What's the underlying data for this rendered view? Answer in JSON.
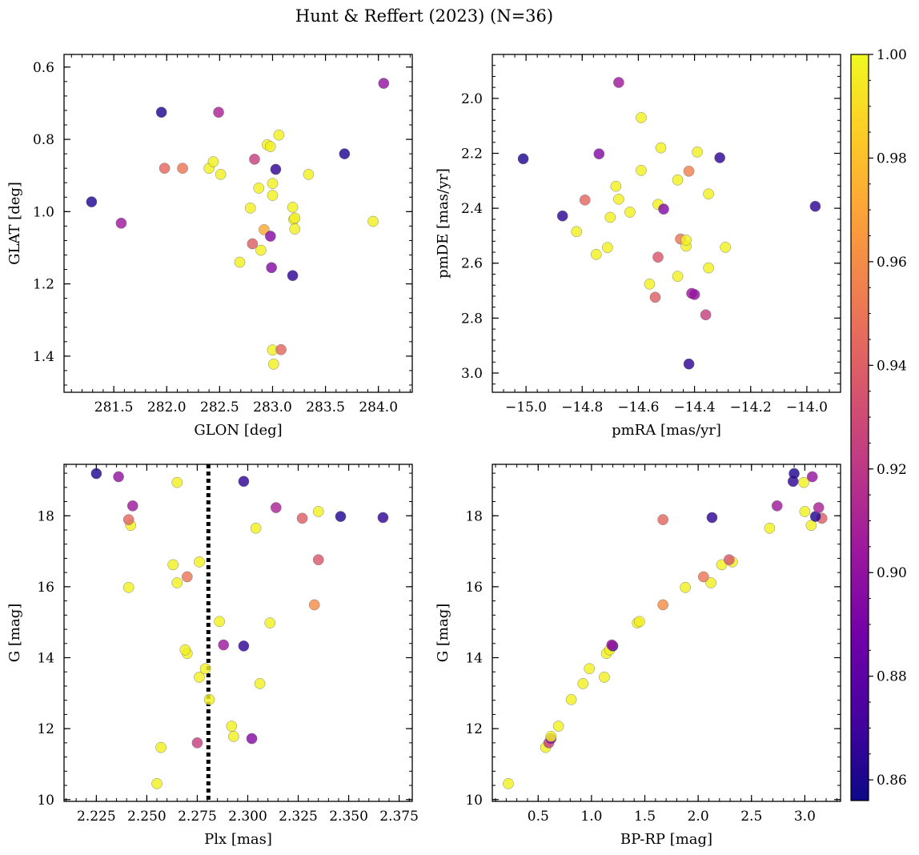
{
  "figure": {
    "title": "Hunt & Reffert (2023) (N=36)"
  },
  "colormap": {
    "name": "plasma",
    "range": [
      0.856,
      1.0
    ],
    "ticks": [
      0.86,
      0.88,
      0.9,
      0.92,
      0.94,
      0.96,
      0.98,
      1.0
    ],
    "tick_labels": [
      "0.86",
      "0.88",
      "0.90",
      "0.92",
      "0.94",
      "0.96",
      "0.98",
      "1.00"
    ],
    "stops": [
      "#0d0887",
      "#46039f",
      "#7201a8",
      "#9c179e",
      "#bd3786",
      "#d8576b",
      "#ed7953",
      "#fb9f3a",
      "#fdca26",
      "#f0f921"
    ]
  },
  "chart_data": [
    {
      "type": "scatter",
      "title": "",
      "xlabel": "GLON [deg]",
      "ylabel": "GLAT [deg]",
      "xlim": [
        281.03,
        284.32
      ],
      "ylim": [
        0.565,
        1.5
      ],
      "xticks": [
        281.5,
        282.0,
        282.5,
        283.0,
        283.5,
        284.0
      ],
      "xtick_labels": [
        "281.5",
        "282.0",
        "282.5",
        "283.0",
        "283.5",
        "284.0"
      ],
      "yticks": [
        0.6,
        0.8,
        1.0,
        1.2,
        1.4
      ],
      "ytick_labels": [
        "0.6",
        "0.8",
        "1.0",
        "1.2",
        "1.4"
      ],
      "points": [
        {
          "x": 281.29,
          "y": 0.973,
          "c": 0.862
        },
        {
          "x": 281.57,
          "y": 1.032,
          "c": 0.905
        },
        {
          "x": 281.95,
          "y": 0.725,
          "c": 0.862
        },
        {
          "x": 281.98,
          "y": 0.88,
          "c": 0.944
        },
        {
          "x": 282.15,
          "y": 0.88,
          "c": 0.95
        },
        {
          "x": 282.4,
          "y": 0.88,
          "c": 0.997
        },
        {
          "x": 282.44,
          "y": 0.862,
          "c": 0.997
        },
        {
          "x": 282.49,
          "y": 0.725,
          "c": 0.91
        },
        {
          "x": 282.51,
          "y": 0.897,
          "c": 0.997
        },
        {
          "x": 282.69,
          "y": 1.14,
          "c": 0.997
        },
        {
          "x": 282.79,
          "y": 0.99,
          "c": 0.997
        },
        {
          "x": 282.81,
          "y": 1.089,
          "c": 0.94
        },
        {
          "x": 282.83,
          "y": 0.855,
          "c": 0.925
        },
        {
          "x": 282.87,
          "y": 0.935,
          "c": 0.997
        },
        {
          "x": 282.89,
          "y": 1.107,
          "c": 0.997
        },
        {
          "x": 282.92,
          "y": 1.05,
          "c": 0.972
        },
        {
          "x": 282.95,
          "y": 0.815,
          "c": 0.997
        },
        {
          "x": 282.98,
          "y": 0.82,
          "c": 0.997
        },
        {
          "x": 282.98,
          "y": 1.068,
          "c": 0.895
        },
        {
          "x": 282.99,
          "y": 1.155,
          "c": 0.895
        },
        {
          "x": 283.0,
          "y": 0.922,
          "c": 0.997
        },
        {
          "x": 283.0,
          "y": 0.955,
          "c": 0.997
        },
        {
          "x": 283.0,
          "y": 1.383,
          "c": 0.997
        },
        {
          "x": 283.01,
          "y": 1.422,
          "c": 0.997
        },
        {
          "x": 283.03,
          "y": 0.883,
          "c": 0.866
        },
        {
          "x": 283.06,
          "y": 0.788,
          "c": 0.997
        },
        {
          "x": 283.08,
          "y": 1.382,
          "c": 0.944
        },
        {
          "x": 283.19,
          "y": 1.177,
          "c": 0.866
        },
        {
          "x": 283.19,
          "y": 0.988,
          "c": 0.997
        },
        {
          "x": 283.2,
          "y": 1.022,
          "c": 0.997
        },
        {
          "x": 283.21,
          "y": 1.018,
          "c": 0.997
        },
        {
          "x": 283.21,
          "y": 1.048,
          "c": 0.997
        },
        {
          "x": 283.34,
          "y": 0.897,
          "c": 0.997
        },
        {
          "x": 283.68,
          "y": 0.84,
          "c": 0.862
        },
        {
          "x": 283.95,
          "y": 1.027,
          "c": 0.997
        },
        {
          "x": 284.05,
          "y": 0.645,
          "c": 0.9
        }
      ]
    },
    {
      "type": "scatter",
      "title": "",
      "xlabel": "pmRA [mas/yr]",
      "ylabel": "pmDE [mas/yr]",
      "xlim": [
        -15.12,
        -13.88
      ],
      "ylim": [
        1.84,
        3.07
      ],
      "xticks": [
        -15.0,
        -14.8,
        -14.6,
        -14.4,
        -14.2,
        -14.0
      ],
      "xtick_labels": [
        "−15.0",
        "−14.8",
        "−14.6",
        "−14.4",
        "−14.2",
        "−14.0"
      ],
      "yticks": [
        2.0,
        2.2,
        2.4,
        2.6,
        2.8,
        3.0
      ],
      "ytick_labels": [
        "2.0",
        "2.2",
        "2.4",
        "2.6",
        "2.8",
        "3.0"
      ],
      "points": [
        {
          "x": -15.01,
          "y": 2.22,
          "c": 0.862
        },
        {
          "x": -14.87,
          "y": 2.428,
          "c": 0.866
        },
        {
          "x": -14.82,
          "y": 2.485,
          "c": 0.997
        },
        {
          "x": -14.79,
          "y": 2.37,
          "c": 0.944
        },
        {
          "x": -14.75,
          "y": 2.568,
          "c": 0.997
        },
        {
          "x": -14.74,
          "y": 2.202,
          "c": 0.895
        },
        {
          "x": -14.71,
          "y": 2.543,
          "c": 0.997
        },
        {
          "x": -14.7,
          "y": 2.433,
          "c": 0.997
        },
        {
          "x": -14.68,
          "y": 2.32,
          "c": 0.997
        },
        {
          "x": -14.67,
          "y": 2.367,
          "c": 0.997
        },
        {
          "x": -14.67,
          "y": 1.942,
          "c": 0.905
        },
        {
          "x": -14.63,
          "y": 2.414,
          "c": 0.997
        },
        {
          "x": -14.59,
          "y": 2.262,
          "c": 0.997
        },
        {
          "x": -14.59,
          "y": 2.07,
          "c": 0.997
        },
        {
          "x": -14.56,
          "y": 2.676,
          "c": 0.997
        },
        {
          "x": -14.54,
          "y": 2.724,
          "c": 0.94
        },
        {
          "x": -14.53,
          "y": 2.578,
          "c": 0.936
        },
        {
          "x": -14.53,
          "y": 2.386,
          "c": 0.997
        },
        {
          "x": -14.52,
          "y": 2.18,
          "c": 0.997
        },
        {
          "x": -14.51,
          "y": 2.403,
          "c": 0.895
        },
        {
          "x": -14.46,
          "y": 2.648,
          "c": 0.997
        },
        {
          "x": -14.46,
          "y": 2.297,
          "c": 0.997
        },
        {
          "x": -14.45,
          "y": 2.512,
          "c": 0.95
        },
        {
          "x": -14.43,
          "y": 2.538,
          "c": 0.997
        },
        {
          "x": -14.43,
          "y": 2.516,
          "c": 0.997
        },
        {
          "x": -14.42,
          "y": 2.967,
          "c": 0.866
        },
        {
          "x": -14.42,
          "y": 2.265,
          "c": 0.955
        },
        {
          "x": -14.41,
          "y": 2.71,
          "c": 0.905
        },
        {
          "x": -14.4,
          "y": 2.714,
          "c": 0.9
        },
        {
          "x": -14.39,
          "y": 2.195,
          "c": 0.997
        },
        {
          "x": -14.36,
          "y": 2.788,
          "c": 0.925
        },
        {
          "x": -14.35,
          "y": 2.617,
          "c": 0.997
        },
        {
          "x": -14.35,
          "y": 2.348,
          "c": 0.997
        },
        {
          "x": -14.31,
          "y": 2.216,
          "c": 0.866
        },
        {
          "x": -14.29,
          "y": 2.542,
          "c": 0.997
        },
        {
          "x": -13.97,
          "y": 2.393,
          "c": 0.866
        }
      ]
    },
    {
      "type": "scatter",
      "title": "",
      "xlabel": "Plx [mas]",
      "ylabel": "G [mag]",
      "xlim": [
        2.209,
        2.3815
      ],
      "ylim": [
        19.45,
        9.95
      ],
      "xticks": [
        2.225,
        2.25,
        2.275,
        2.3,
        2.325,
        2.35,
        2.375
      ],
      "xtick_labels": [
        "2.225",
        "2.250",
        "2.275",
        "2.300",
        "2.325",
        "2.350",
        "2.375"
      ],
      "yticks": [
        10,
        12,
        14,
        16,
        18
      ],
      "ytick_labels": [
        "10",
        "12",
        "14",
        "16",
        "18"
      ],
      "vline": {
        "x": 2.2805,
        "style": "dotted"
      },
      "points": [
        {
          "x": 2.255,
          "y": 10.45,
          "c": 0.997
        },
        {
          "x": 2.257,
          "y": 11.47,
          "c": 0.997
        },
        {
          "x": 2.275,
          "y": 11.6,
          "c": 0.925
        },
        {
          "x": 2.293,
          "y": 11.78,
          "c": 0.997
        },
        {
          "x": 2.302,
          "y": 11.72,
          "c": 0.895
        },
        {
          "x": 2.292,
          "y": 12.07,
          "c": 0.997
        },
        {
          "x": 2.281,
          "y": 12.82,
          "c": 0.997
        },
        {
          "x": 2.306,
          "y": 13.27,
          "c": 0.997
        },
        {
          "x": 2.276,
          "y": 13.45,
          "c": 0.997
        },
        {
          "x": 2.279,
          "y": 13.69,
          "c": 0.997
        },
        {
          "x": 2.27,
          "y": 14.12,
          "c": 0.997
        },
        {
          "x": 2.269,
          "y": 14.22,
          "c": 0.997
        },
        {
          "x": 2.288,
          "y": 14.36,
          "c": 0.905
        },
        {
          "x": 2.298,
          "y": 14.33,
          "c": 0.866
        },
        {
          "x": 2.286,
          "y": 15.02,
          "c": 0.997
        },
        {
          "x": 2.311,
          "y": 14.98,
          "c": 0.997
        },
        {
          "x": 2.333,
          "y": 15.49,
          "c": 0.96
        },
        {
          "x": 2.241,
          "y": 15.98,
          "c": 0.997
        },
        {
          "x": 2.265,
          "y": 16.11,
          "c": 0.997
        },
        {
          "x": 2.27,
          "y": 16.28,
          "c": 0.95
        },
        {
          "x": 2.263,
          "y": 16.62,
          "c": 0.997
        },
        {
          "x": 2.276,
          "y": 16.7,
          "c": 0.997
        },
        {
          "x": 2.335,
          "y": 16.76,
          "c": 0.936
        },
        {
          "x": 2.304,
          "y": 17.65,
          "c": 0.997
        },
        {
          "x": 2.242,
          "y": 17.73,
          "c": 0.997
        },
        {
          "x": 2.241,
          "y": 17.89,
          "c": 0.944
        },
        {
          "x": 2.243,
          "y": 18.28,
          "c": 0.905
        },
        {
          "x": 2.314,
          "y": 18.23,
          "c": 0.91
        },
        {
          "x": 2.327,
          "y": 17.93,
          "c": 0.94
        },
        {
          "x": 2.335,
          "y": 18.12,
          "c": 0.997
        },
        {
          "x": 2.346,
          "y": 17.98,
          "c": 0.862
        },
        {
          "x": 2.367,
          "y": 17.95,
          "c": 0.866
        },
        {
          "x": 2.265,
          "y": 18.94,
          "c": 0.997
        },
        {
          "x": 2.298,
          "y": 18.97,
          "c": 0.866
        },
        {
          "x": 2.236,
          "y": 19.1,
          "c": 0.9
        },
        {
          "x": 2.225,
          "y": 19.19,
          "c": 0.862
        }
      ]
    },
    {
      "type": "scatter",
      "title": "",
      "xlabel": "BP-RP [mag]",
      "ylabel": "G [mag]",
      "xlim": [
        0.07,
        3.335
      ],
      "ylim": [
        19.45,
        9.95
      ],
      "xticks": [
        0.5,
        1.0,
        1.5,
        2.0,
        2.5,
        3.0
      ],
      "xtick_labels": [
        "0.5",
        "1.0",
        "1.5",
        "2.0",
        "2.5",
        "3.0"
      ],
      "yticks": [
        10,
        12,
        14,
        16,
        18
      ],
      "ytick_labels": [
        "10",
        "12",
        "14",
        "16",
        "18"
      ],
      "points": [
        {
          "x": 0.22,
          "y": 10.45,
          "c": 0.997
        },
        {
          "x": 0.57,
          "y": 11.47,
          "c": 0.997
        },
        {
          "x": 0.6,
          "y": 11.6,
          "c": 0.925
        },
        {
          "x": 0.62,
          "y": 11.72,
          "c": 0.895
        },
        {
          "x": 0.62,
          "y": 11.78,
          "c": 0.997
        },
        {
          "x": 0.69,
          "y": 12.07,
          "c": 0.997
        },
        {
          "x": 0.81,
          "y": 12.82,
          "c": 0.997
        },
        {
          "x": 0.92,
          "y": 13.27,
          "c": 0.997
        },
        {
          "x": 1.12,
          "y": 13.45,
          "c": 0.997
        },
        {
          "x": 0.98,
          "y": 13.69,
          "c": 0.997
        },
        {
          "x": 1.14,
          "y": 14.12,
          "c": 0.997
        },
        {
          "x": 1.17,
          "y": 14.22,
          "c": 0.997
        },
        {
          "x": 1.2,
          "y": 14.33,
          "c": 0.866
        },
        {
          "x": 1.19,
          "y": 14.36,
          "c": 0.905
        },
        {
          "x": 1.43,
          "y": 14.98,
          "c": 0.997
        },
        {
          "x": 1.45,
          "y": 15.02,
          "c": 0.997
        },
        {
          "x": 1.67,
          "y": 15.49,
          "c": 0.96
        },
        {
          "x": 1.88,
          "y": 15.98,
          "c": 0.997
        },
        {
          "x": 2.12,
          "y": 16.11,
          "c": 0.997
        },
        {
          "x": 2.05,
          "y": 16.28,
          "c": 0.95
        },
        {
          "x": 2.22,
          "y": 16.62,
          "c": 0.997
        },
        {
          "x": 2.32,
          "y": 16.7,
          "c": 0.997
        },
        {
          "x": 2.29,
          "y": 16.76,
          "c": 0.936
        },
        {
          "x": 2.67,
          "y": 17.65,
          "c": 0.997
        },
        {
          "x": 3.06,
          "y": 17.73,
          "c": 0.997
        },
        {
          "x": 1.67,
          "y": 17.89,
          "c": 0.944
        },
        {
          "x": 3.16,
          "y": 17.93,
          "c": 0.94
        },
        {
          "x": 2.13,
          "y": 17.95,
          "c": 0.866
        },
        {
          "x": 3.1,
          "y": 17.98,
          "c": 0.862
        },
        {
          "x": 3.0,
          "y": 18.12,
          "c": 0.997
        },
        {
          "x": 3.13,
          "y": 18.23,
          "c": 0.91
        },
        {
          "x": 2.74,
          "y": 18.28,
          "c": 0.905
        },
        {
          "x": 2.99,
          "y": 18.94,
          "c": 0.997
        },
        {
          "x": 2.89,
          "y": 18.97,
          "c": 0.866
        },
        {
          "x": 3.07,
          "y": 19.1,
          "c": 0.9
        },
        {
          "x": 2.9,
          "y": 19.19,
          "c": 0.862
        }
      ]
    }
  ]
}
